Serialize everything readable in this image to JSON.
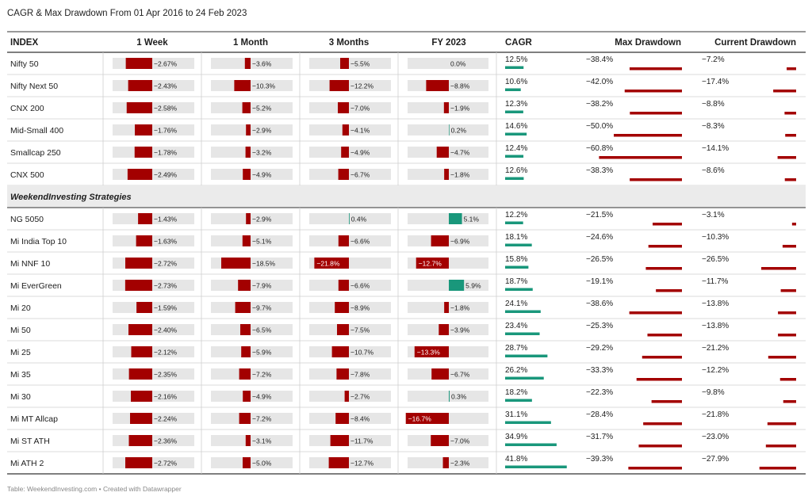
{
  "title": "CAGR & Max Drawdown From 01 Apr 2016 to 24 Feb 2023",
  "footer": "Table: WeekendInvesting.com • Created with Datawrapper",
  "colors": {
    "negative": "#a30000",
    "positive": "#19977b",
    "track": "#e6e6e6",
    "separator": "#cfcfcf",
    "section_bg": "#ebebeb"
  },
  "chart_data": {
    "type": "table",
    "columns": [
      "INDEX",
      "1 Week",
      "1 Month",
      "3 Months",
      "FY 2023",
      "CAGR",
      "Max Drawdown",
      "Current Drawdown"
    ],
    "sections": [
      {
        "label": "",
        "rows": [
          {
            "name": "Nifty 50",
            "week": -2.67,
            "month": -3.6,
            "three_months": -5.5,
            "fy2023": 0.0,
            "cagr": 12.5,
            "max_dd": -38.4,
            "cur_dd": -7.2
          },
          {
            "name": "Nifty Next 50",
            "week": -2.43,
            "month": -10.3,
            "three_months": -12.2,
            "fy2023": -8.8,
            "cagr": 10.6,
            "max_dd": -42.0,
            "cur_dd": -17.4
          },
          {
            "name": "CNX 200",
            "week": -2.58,
            "month": -5.2,
            "three_months": -7.0,
            "fy2023": -1.9,
            "cagr": 12.3,
            "max_dd": -38.2,
            "cur_dd": -8.8
          },
          {
            "name": "Mid-Small 400",
            "week": -1.76,
            "month": -2.9,
            "three_months": -4.1,
            "fy2023": 0.2,
            "cagr": 14.6,
            "max_dd": -50.0,
            "cur_dd": -8.3
          },
          {
            "name": "Smallcap 250",
            "week": -1.78,
            "month": -3.2,
            "three_months": -4.9,
            "fy2023": -4.7,
            "cagr": 12.4,
            "max_dd": -60.8,
            "cur_dd": -14.1
          },
          {
            "name": "CNX 500",
            "week": -2.49,
            "month": -4.9,
            "three_months": -6.7,
            "fy2023": -1.8,
            "cagr": 12.6,
            "max_dd": -38.3,
            "cur_dd": -8.6
          }
        ]
      },
      {
        "label": "WeekendInvesting Strategies",
        "rows": [
          {
            "name": "NG 5050",
            "week": -1.43,
            "month": -2.9,
            "three_months": 0.4,
            "fy2023": 5.1,
            "cagr": 12.2,
            "max_dd": -21.5,
            "cur_dd": -3.1
          },
          {
            "name": "Mi India Top 10",
            "week": -1.63,
            "month": -5.1,
            "three_months": -6.6,
            "fy2023": -6.9,
            "cagr": 18.1,
            "max_dd": -24.6,
            "cur_dd": -10.3
          },
          {
            "name": "Mi NNF 10",
            "week": -2.72,
            "month": -18.5,
            "three_months": -21.8,
            "fy2023": -12.7,
            "cagr": 15.8,
            "max_dd": -26.5,
            "cur_dd": -26.5
          },
          {
            "name": "Mi EverGreen",
            "week": -2.73,
            "month": -7.9,
            "three_months": -6.6,
            "fy2023": 5.9,
            "cagr": 18.7,
            "max_dd": -19.1,
            "cur_dd": -11.7
          },
          {
            "name": "Mi 20",
            "week": -1.59,
            "month": -9.7,
            "three_months": -8.9,
            "fy2023": -1.8,
            "cagr": 24.1,
            "max_dd": -38.6,
            "cur_dd": -13.8
          },
          {
            "name": "Mi 50",
            "week": -2.4,
            "month": -6.5,
            "three_months": -7.5,
            "fy2023": -3.9,
            "cagr": 23.4,
            "max_dd": -25.3,
            "cur_dd": -13.8
          },
          {
            "name": "Mi 25",
            "week": -2.12,
            "month": -5.9,
            "three_months": -10.7,
            "fy2023": -13.3,
            "cagr": 28.7,
            "max_dd": -29.2,
            "cur_dd": -21.2
          },
          {
            "name": "Mi 35",
            "week": -2.35,
            "month": -7.2,
            "three_months": -7.8,
            "fy2023": -6.7,
            "cagr": 26.2,
            "max_dd": -33.3,
            "cur_dd": -12.2
          },
          {
            "name": "Mi 30",
            "week": -2.16,
            "month": -4.9,
            "three_months": -2.7,
            "fy2023": 0.3,
            "cagr": 18.2,
            "max_dd": -22.3,
            "cur_dd": -9.8
          },
          {
            "name": "Mi MT Allcap",
            "week": -2.24,
            "month": -7.2,
            "three_months": -8.4,
            "fy2023": -16.7,
            "cagr": 31.1,
            "max_dd": -28.4,
            "cur_dd": -21.8
          },
          {
            "name": "Mi ST ATH",
            "week": -2.36,
            "month": -3.1,
            "three_months": -11.7,
            "fy2023": -7.0,
            "cagr": 34.9,
            "max_dd": -31.7,
            "cur_dd": -23.0
          },
          {
            "name": "Mi ATH 2",
            "week": -2.72,
            "month": -5.0,
            "three_months": -12.7,
            "fy2023": -2.3,
            "cagr": 41.8,
            "max_dd": -39.3,
            "cur_dd": -27.9
          }
        ]
      }
    ]
  }
}
